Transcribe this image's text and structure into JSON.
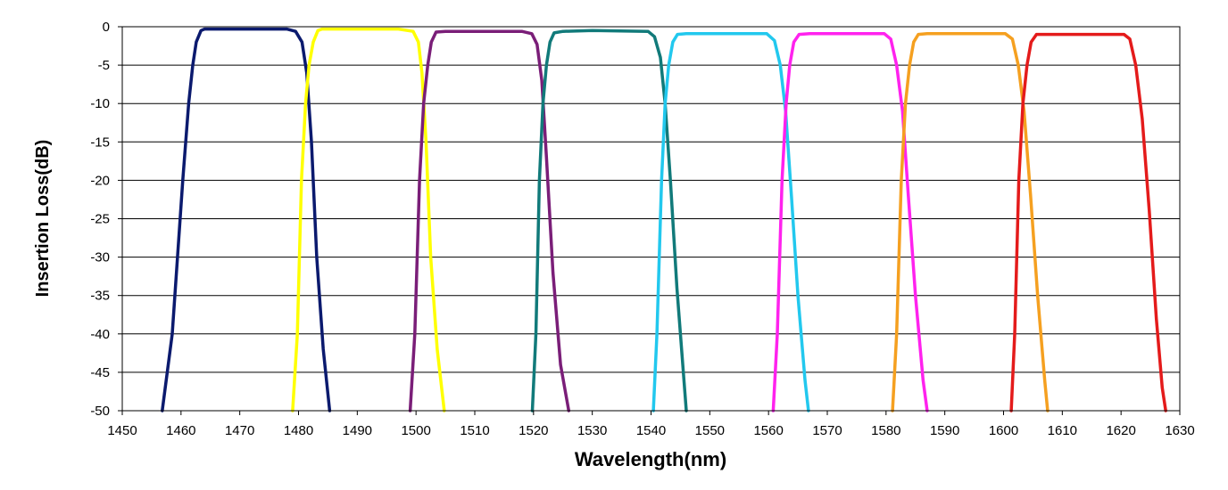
{
  "chart_data": {
    "type": "line",
    "title": "",
    "xlabel": "Wavelength(nm)",
    "ylabel": "Insertion Loss(dB)",
    "xlim": [
      1450,
      1630
    ],
    "ylim": [
      -50,
      0
    ],
    "x_ticks": [
      1450,
      1460,
      1470,
      1480,
      1490,
      1500,
      1510,
      1520,
      1530,
      1540,
      1550,
      1560,
      1570,
      1580,
      1590,
      1600,
      1610,
      1620,
      1630
    ],
    "y_ticks": [
      0,
      -5,
      -10,
      -15,
      -20,
      -25,
      -30,
      -35,
      -40,
      -45,
      -50
    ],
    "grid": "horizontal",
    "legend": "none",
    "series": [
      {
        "color": "#0b1a6e",
        "x": [
          1456.8,
          1458.5,
          1460.3,
          1461.3,
          1462.0,
          1462.6,
          1463.4,
          1464,
          1470,
          1478,
          1479.5,
          1480.6,
          1481.4,
          1482.2,
          1483.1,
          1484.2,
          1485.3
        ],
        "y": [
          -50,
          -40,
          -20,
          -10,
          -5,
          -2,
          -0.5,
          -0.3,
          -0.3,
          -0.3,
          -0.6,
          -2,
          -6,
          -15,
          -30,
          -42,
          -50
        ]
      },
      {
        "color": "#ffff00",
        "x": [
          1479.0,
          1479.8,
          1480.5,
          1481.2,
          1481.8,
          1482.5,
          1483.3,
          1484,
          1490,
          1497,
          1499.5,
          1500.4,
          1501.0,
          1501.7,
          1502.5,
          1503.6,
          1504.8
        ],
        "y": [
          -50,
          -40,
          -20,
          -10,
          -5,
          -2,
          -0.5,
          -0.3,
          -0.3,
          -0.3,
          -0.6,
          -2,
          -6,
          -15,
          -30,
          -42,
          -50
        ]
      },
      {
        "color": "#7a1e78",
        "x": [
          1499.0,
          1499.8,
          1500.6,
          1501.3,
          1502.0,
          1502.6,
          1503.4,
          1505,
          1510,
          1518,
          1519.7,
          1520.6,
          1521.4,
          1522.2,
          1523.3,
          1524.6,
          1526.0
        ],
        "y": [
          -50,
          -40,
          -20,
          -10,
          -5,
          -2,
          -0.7,
          -0.6,
          -0.6,
          -0.6,
          -0.9,
          -2.3,
          -7,
          -17,
          -32,
          -44,
          -50
        ]
      },
      {
        "color": "#117a7a",
        "x": [
          1519.8,
          1520.4,
          1521.0,
          1521.6,
          1522.2,
          1522.8,
          1523.5,
          1525,
          1530,
          1539.5,
          1540.6,
          1541.6,
          1542.4,
          1543.3,
          1544.4,
          1545.5,
          1546.0
        ],
        "y": [
          -50,
          -40,
          -20,
          -10,
          -5,
          -2,
          -0.8,
          -0.6,
          -0.5,
          -0.6,
          -1.3,
          -4,
          -10,
          -20,
          -34,
          -45,
          -50
        ]
      },
      {
        "color": "#22c8ee",
        "x": [
          1540.4,
          1541.0,
          1541.8,
          1542.4,
          1543.0,
          1543.7,
          1544.5,
          1546,
          1550,
          1559.7,
          1561.0,
          1562.0,
          1562.9,
          1563.9,
          1565.0,
          1566.2,
          1566.8
        ],
        "y": [
          -50,
          -40,
          -20,
          -10,
          -5,
          -2,
          -1.0,
          -0.9,
          -0.9,
          -0.9,
          -1.8,
          -5,
          -11,
          -22,
          -35,
          -46,
          -50
        ]
      },
      {
        "color": "#ff22ee",
        "x": [
          1560.8,
          1561.5,
          1562.3,
          1563.0,
          1563.6,
          1564.3,
          1565.2,
          1567,
          1572,
          1579.7,
          1580.8,
          1581.8,
          1582.8,
          1583.8,
          1585.0,
          1586.3,
          1587.0
        ],
        "y": [
          -50,
          -40,
          -20,
          -10,
          -5,
          -2,
          -1.0,
          -0.9,
          -0.9,
          -0.9,
          -1.6,
          -5,
          -11,
          -22,
          -35,
          -46,
          -50
        ]
      },
      {
        "color": "#f5a020",
        "x": [
          1581.1,
          1581.8,
          1582.6,
          1583.3,
          1584.0,
          1584.7,
          1585.5,
          1587,
          1593,
          1600.3,
          1601.5,
          1602.5,
          1603.5,
          1604.6,
          1605.8,
          1607.0,
          1607.5
        ],
        "y": [
          -50,
          -40,
          -20,
          -10,
          -5,
          -2,
          -1.0,
          -0.9,
          -0.9,
          -0.9,
          -1.6,
          -5,
          -11,
          -22,
          -35,
          -46,
          -50
        ]
      },
      {
        "color": "#e41b1b",
        "x": [
          1601.3,
          1601.9,
          1602.6,
          1603.3,
          1604.0,
          1604.7,
          1605.6,
          1608,
          1615,
          1620.5,
          1621.5,
          1622.5,
          1623.6,
          1624.8,
          1626.0,
          1627.0,
          1627.6
        ],
        "y": [
          -50,
          -40,
          -20,
          -10,
          -5,
          -2,
          -1.0,
          -1.0,
          -1.0,
          -1.0,
          -1.6,
          -5,
          -12,
          -24,
          -38,
          -47,
          -50
        ]
      }
    ]
  }
}
